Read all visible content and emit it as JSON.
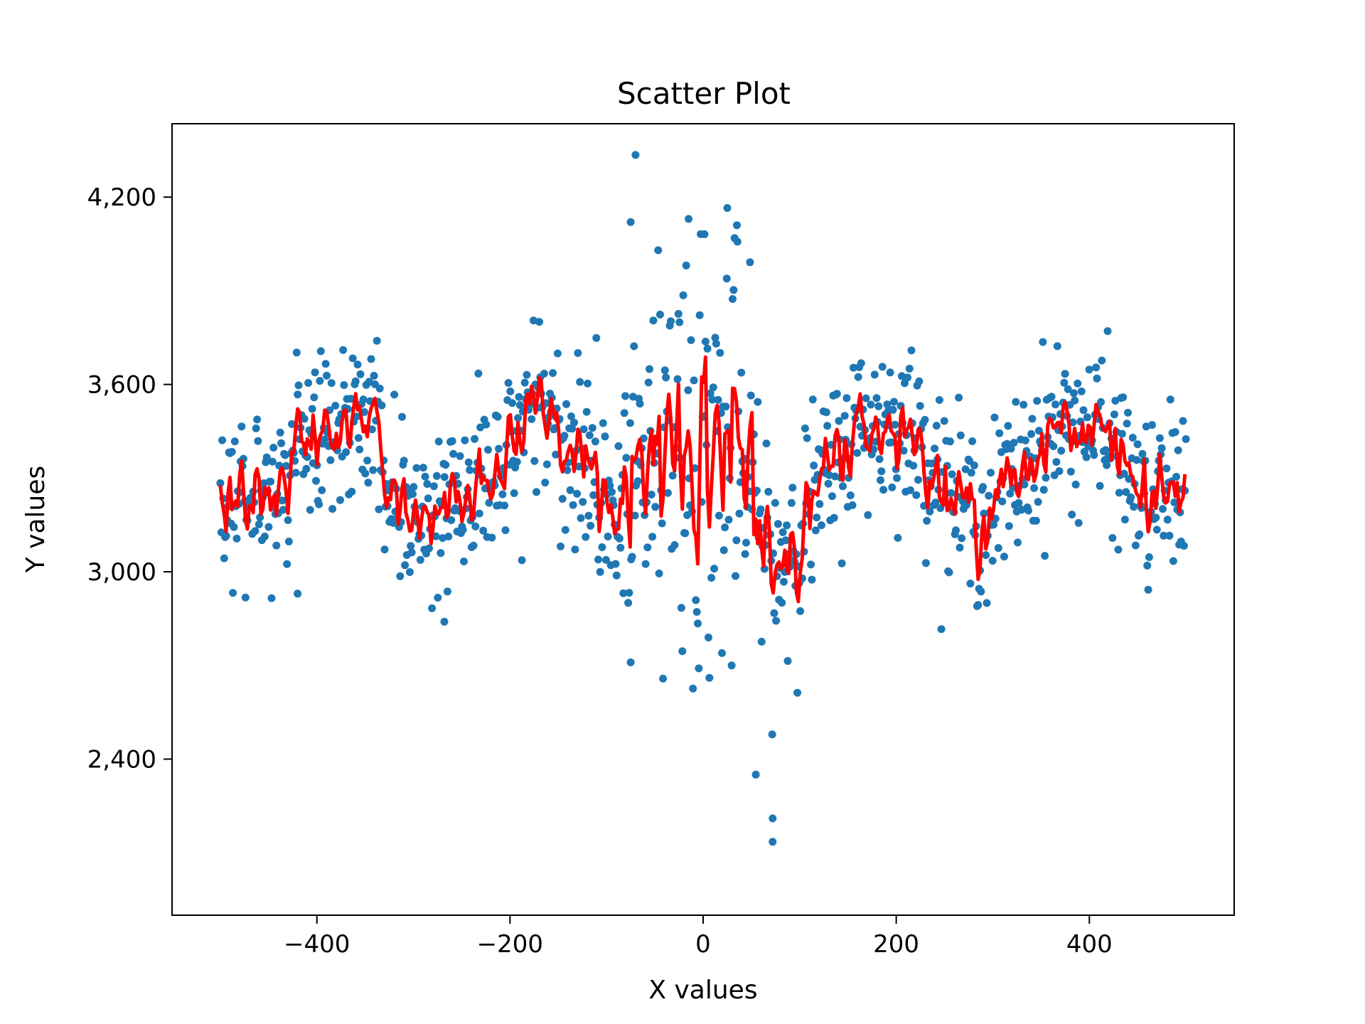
{
  "chart_data": {
    "type": "scatter",
    "title": "Scatter Plot",
    "xlabel": "X values",
    "ylabel": "Y values",
    "xlim": [
      -550,
      550
    ],
    "ylim": [
      1900,
      4435
    ],
    "x_ticks": [
      -400,
      -200,
      0,
      200,
      400
    ],
    "x_tick_labels": [
      "−400",
      "−200",
      "0",
      "200",
      "400"
    ],
    "y_ticks": [
      2400,
      3000,
      3600,
      4200
    ],
    "y_tick_labels": [
      "2,400",
      "3,000",
      "3,600",
      "4,200"
    ],
    "grid": false,
    "legend": "none",
    "series": [
      {
        "kind": "scatter",
        "color": "#1f77b4",
        "x_range": [
          -500,
          500
        ],
        "n_points": 1000
      },
      {
        "kind": "line",
        "color": "#ff0000"
      }
    ],
    "notable_points": [
      {
        "x": -70,
        "y": 4335
      },
      {
        "x": 25,
        "y": 4165
      },
      {
        "x": -15,
        "y": 4130
      },
      {
        "x": 35,
        "y": 4110
      },
      {
        "x": -75,
        "y": 4120
      },
      {
        "x": 72,
        "y": 2210
      },
      {
        "x": 72,
        "y": 2135
      },
      {
        "x": -75,
        "y": 2710
      },
      {
        "x": -420,
        "y": 2930
      },
      {
        "x": -268,
        "y": 2840
      }
    ],
    "trend_keypoints": [
      {
        "x": -500,
        "y": 3300
      },
      {
        "x": -470,
        "y": 3200
      },
      {
        "x": -440,
        "y": 3280
      },
      {
        "x": -400,
        "y": 3480
      },
      {
        "x": -370,
        "y": 3490
      },
      {
        "x": -340,
        "y": 3450
      },
      {
        "x": -320,
        "y": 3250
      },
      {
        "x": -290,
        "y": 3180
      },
      {
        "x": -260,
        "y": 3200
      },
      {
        "x": -230,
        "y": 3320
      },
      {
        "x": -200,
        "y": 3420
      },
      {
        "x": -170,
        "y": 3540
      },
      {
        "x": -150,
        "y": 3480
      },
      {
        "x": -120,
        "y": 3350
      },
      {
        "x": -90,
        "y": 3150
      },
      {
        "x": -70,
        "y": 3400
      },
      {
        "x": -40,
        "y": 3450
      },
      {
        "x": 0,
        "y": 3430
      },
      {
        "x": 40,
        "y": 3320
      },
      {
        "x": 70,
        "y": 3000
      },
      {
        "x": 100,
        "y": 3150
      },
      {
        "x": 130,
        "y": 3300
      },
      {
        "x": 160,
        "y": 3470
      },
      {
        "x": 200,
        "y": 3480
      },
      {
        "x": 230,
        "y": 3400
      },
      {
        "x": 260,
        "y": 3230
      },
      {
        "x": 290,
        "y": 3160
      },
      {
        "x": 320,
        "y": 3280
      },
      {
        "x": 360,
        "y": 3460
      },
      {
        "x": 400,
        "y": 3470
      },
      {
        "x": 430,
        "y": 3380
      },
      {
        "x": 460,
        "y": 3200
      },
      {
        "x": 500,
        "y": 3300
      }
    ]
  }
}
